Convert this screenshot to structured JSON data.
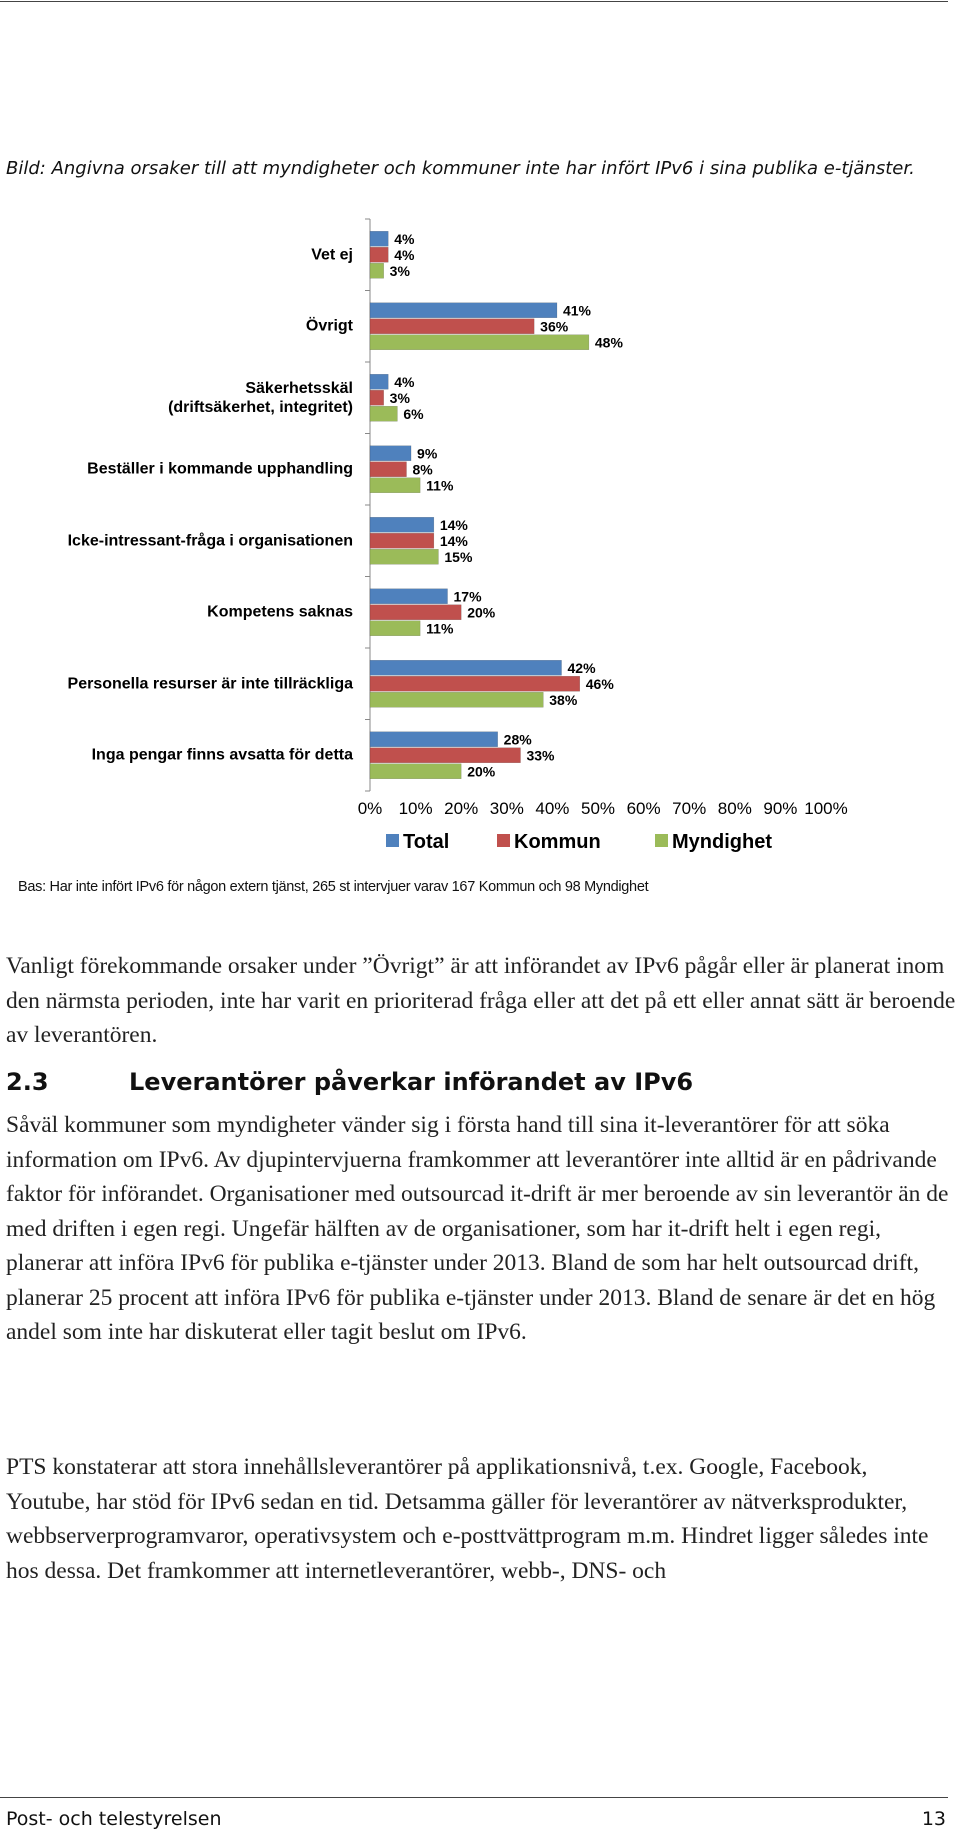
{
  "caption": "Bild: Angivna orsaker till att myndigheter och kommuner inte har infört IPv6 i sina publika e-tjänster.",
  "chart_data": {
    "type": "hbar",
    "categories": [
      "Vet ej",
      "Övrigt",
      "Säkerhetsskäl\n(driftsäkerhet, integritet)",
      "Beställer i kommande upphandling",
      "Icke-intressant-fråga i organisationen",
      "Kompetens saknas",
      "Personella resurser är inte tillräckliga",
      "Inga pengar finns avsatta för detta"
    ],
    "series": [
      {
        "name": "Total",
        "color": "#4f81bd",
        "values": [
          4,
          41,
          4,
          9,
          14,
          17,
          42,
          28
        ],
        "value_labels": [
          "4%",
          "41%",
          "4%",
          "9%",
          "14%",
          "17%",
          "42%",
          "28%"
        ]
      },
      {
        "name": "Kommun",
        "color": "#c0504d",
        "values": [
          4,
          36,
          3,
          8,
          14,
          20,
          46,
          33
        ],
        "value_labels": [
          "4%",
          "36%",
          "3%",
          "8%",
          "14%",
          "20%",
          "46%",
          "33%"
        ]
      },
      {
        "name": "Myndighet",
        "color": "#9bbb59",
        "values": [
          3,
          48,
          6,
          11,
          15,
          11,
          38,
          20
        ],
        "value_labels": [
          "3%",
          "48%",
          "6%",
          "11%",
          "15%",
          "11%",
          "38%",
          "20%"
        ]
      }
    ],
    "xlim": [
      0,
      100
    ],
    "xticks": [
      {
        "value": 0,
        "label": "0%"
      },
      {
        "value": 10,
        "label": "10%"
      },
      {
        "value": 20,
        "label": "20%"
      },
      {
        "value": 30,
        "label": "30%"
      },
      {
        "value": 40,
        "label": "40%"
      },
      {
        "value": 50,
        "label": "50%"
      },
      {
        "value": 60,
        "label": "60%"
      },
      {
        "value": 70,
        "label": "70%"
      },
      {
        "value": 80,
        "label": "80%"
      },
      {
        "value": 90,
        "label": "90%"
      },
      {
        "value": 100,
        "label": "100%"
      }
    ],
    "grid": false,
    "legend": "bottom"
  },
  "note": "Bas: Har inte infört IPv6 för någon extern tjänst, 265 st intervjuer varav 167 Kommun och 98 Myndighet",
  "paragraphs": [
    "Vanligt förekommande orsaker under ”Övrigt” är att införandet av IPv6 pågår eller är planerat inom den närmsta perioden, inte har varit en prioriterad fråga eller att det på ett eller annat sätt är beroende av leverantören."
  ],
  "heading": {
    "number": "2.3",
    "text": "Leverantörer påverkar införandet av IPv6"
  },
  "section_paragraphs": [
    "Såväl kommuner som myndigheter vänder sig i första hand till sina it-leverantörer för att söka information om IPv6. Av djupintervjuerna framkommer att leverantörer inte alltid är en pådrivande faktor för införandet. Organisationer med outsourcad it-drift är mer beroende av sin leverantör än de med driften i egen regi. Ungefär hälften av de organisationer, som har it-drift helt i egen regi, planerar att införa IPv6 för publika e-tjänster under 2013. Bland de som har helt outsourcad drift, planerar 25 procent att införa IPv6 för publika e-tjänster under 2013. Bland de senare är det en hög andel som inte har diskuterat eller tagit beslut om IPv6.",
    "PTS konstaterar att stora innehållsleverantörer på applikationsnivå, t.ex. Google, Facebook, Youtube, har stöd för IPv6 sedan en tid. Detsamma gäller för leverantörer av nätverksprodukter, webbserverprogramvaror, operativsystem och e-posttvättprogram m.m. Hindret ligger således inte hos dessa. Det framkommer att internetleverantörer, webb-, DNS- och"
  ],
  "footer": {
    "left": "Post- och telestyrelsen",
    "page": 13
  }
}
